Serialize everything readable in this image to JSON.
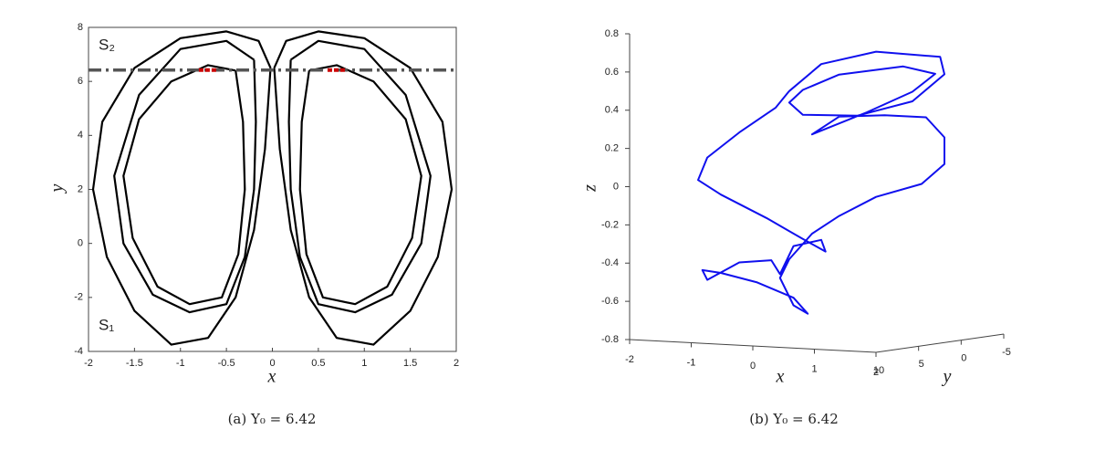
{
  "chart_data": [
    {
      "type": "line",
      "xlabel": "x",
      "ylabel": "y",
      "caption": "(a) Y₀ = 6.42",
      "xlim": [
        -2,
        2
      ],
      "ylim": [
        -4,
        8
      ],
      "xticks": [
        -2,
        -1.5,
        -1,
        -0.5,
        0,
        0.5,
        1,
        1.5,
        2
      ],
      "yticks": [
        -4,
        -2,
        0,
        2,
        4,
        6,
        8
      ],
      "annotations": [
        "S₂",
        "S₁"
      ],
      "hlines": [
        {
          "value": 6.42,
          "color": "#555555"
        }
      ],
      "segments": [
        {
          "x": [
            -0.8,
            -0.6
          ],
          "y": 6.42,
          "color": "#cc0000"
        },
        {
          "x": [
            0.6,
            0.8
          ],
          "y": 6.42,
          "color": "#cc0000"
        }
      ],
      "series": [
        {
          "color": "#000000",
          "x": [
            0.02,
            0.15,
            0.5,
            1.0,
            1.5,
            1.85,
            1.95,
            1.8,
            1.5,
            1.1,
            0.7,
            0.4,
            0.2,
            0.08,
            0.02,
            null,
            0.2,
            0.5,
            1.0,
            1.45,
            1.72,
            1.62,
            1.3,
            0.9,
            0.5,
            0.3,
            0.2,
            0.18,
            0.2,
            null,
            0.4,
            0.7,
            1.1,
            1.45,
            1.62,
            1.52,
            1.25,
            0.9,
            0.55,
            0.37,
            0.3,
            0.32,
            0.4,
            null,
            -0.02,
            -0.15,
            -0.5,
            -1.0,
            -1.5,
            -1.85,
            -1.95,
            -1.8,
            -1.5,
            -1.1,
            -0.7,
            -0.4,
            -0.2,
            -0.08,
            -0.02,
            null,
            -0.2,
            -0.5,
            -1.0,
            -1.45,
            -1.72,
            -1.62,
            -1.3,
            -0.9,
            -0.5,
            -0.3,
            -0.2,
            -0.18,
            -0.2,
            null,
            -0.4,
            -0.7,
            -1.1,
            -1.45,
            -1.62,
            -1.52,
            -1.25,
            -0.9,
            -0.55,
            -0.37,
            -0.3,
            -0.32,
            -0.4
          ],
          "values": [
            6.5,
            7.5,
            7.85,
            7.6,
            6.5,
            4.5,
            2,
            -0.5,
            -2.5,
            -3.75,
            -3.5,
            -2,
            0.5,
            3.5,
            6.5,
            null,
            6.8,
            7.5,
            7.2,
            5.5,
            2.5,
            0,
            -1.9,
            -2.55,
            -2.25,
            -0.5,
            2,
            4.5,
            6.8,
            null,
            6.4,
            6.6,
            6.0,
            4.6,
            2.5,
            0.2,
            -1.6,
            -2.25,
            -2.0,
            -0.4,
            2,
            4.5,
            6.4,
            null,
            6.5,
            7.5,
            7.85,
            7.6,
            6.5,
            4.5,
            2,
            -0.5,
            -2.5,
            -3.75,
            -3.5,
            -2,
            0.5,
            3.5,
            6.5,
            null,
            6.8,
            7.5,
            7.2,
            5.5,
            2.5,
            0,
            -1.9,
            -2.55,
            -2.25,
            -0.5,
            2,
            4.5,
            6.8,
            null,
            6.4,
            6.6,
            6.0,
            4.6,
            2.5,
            0.2,
            -1.6,
            -2.25,
            -2.0,
            -0.4,
            2,
            4.5,
            6.4
          ]
        }
      ]
    },
    {
      "type": "line3d",
      "xlabel": "x",
      "ylabel": "y",
      "zlabel": "z",
      "caption": "(b) Y₀ = 6.42",
      "xlim": [
        -2,
        2
      ],
      "ylim": [
        -5,
        10
      ],
      "zlim": [
        -0.8,
        0.8
      ],
      "xticks": [
        -2,
        -1,
        0,
        1,
        2
      ],
      "yticks": [
        10,
        5,
        0,
        -5
      ],
      "zticks": [
        -0.8,
        -0.6,
        -0.4,
        -0.2,
        0,
        0.2,
        0.4,
        0.6,
        0.8
      ],
      "series": [
        {
          "color": "#1010ee",
          "x": [
            -0.1,
            0.42,
            1.31,
            2.35,
            2.42,
            1.9,
            1.01,
            0.12,
            -0.1,
            0.12,
            0.71,
            1.75,
            2.27,
            1.9,
            1.16,
            0.27,
            0.71,
            1.45,
            2.12,
            2.42,
            2.42,
            2.05,
            1.31,
            0.71,
            0.27,
            -0.1,
            -0.25,
            -0.03,
            0.2,
            -0.03,
            -0.62,
            -1.21,
            -1.51,
            -1.43,
            -0.91,
            -0.39,
            -0.25,
            -0.03,
            0.42,
            0.49,
            0.12,
            -0.47,
            -1.21,
            -1.58,
            -1.43,
            -0.91,
            -0.32,
            -0.1
          ],
          "y": [
            5,
            5,
            5,
            5,
            5,
            5,
            5,
            5,
            5,
            5,
            5,
            5,
            5,
            5,
            5,
            5,
            5,
            5,
            5,
            5,
            5,
            5,
            5,
            5,
            5,
            5,
            5,
            5,
            5,
            5,
            5,
            5,
            5,
            5,
            5,
            5,
            5,
            5,
            5,
            5,
            5,
            5,
            5,
            5,
            5,
            5,
            5,
            5
          ],
          "z": [
            0.5,
            0.65,
            0.73,
            0.72,
            0.63,
            0.48,
            0.39,
            0.38,
            0.44,
            0.51,
            0.6,
            0.66,
            0.63,
            0.53,
            0.41,
            0.28,
            0.38,
            0.4,
            0.4,
            0.3,
            0.16,
            0.05,
            -0.03,
            -0.14,
            -0.24,
            -0.38,
            -0.48,
            -0.62,
            -0.66,
            -0.58,
            -0.51,
            -0.47,
            -0.46,
            -0.51,
            -0.41,
            -0.39,
            -0.46,
            -0.31,
            -0.27,
            -0.33,
            -0.27,
            -0.17,
            -0.06,
            0.01,
            0.13,
            0.27,
            0.41,
            0.5
          ]
        }
      ]
    }
  ]
}
